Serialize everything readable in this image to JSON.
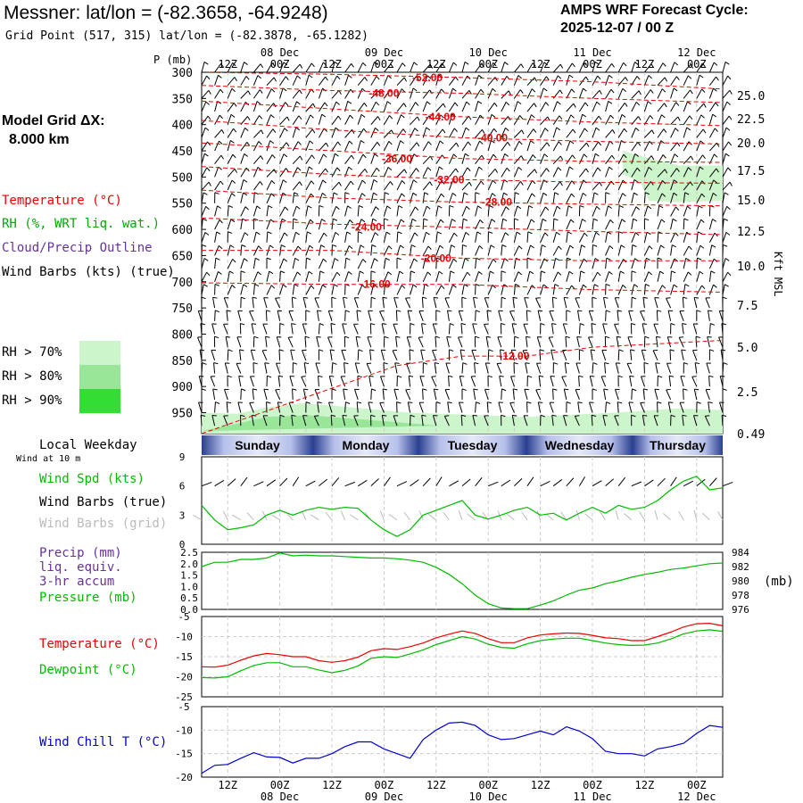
{
  "header": {
    "station_title": "Messner:  lat/lon = (-82.3658, -64.9248)",
    "grid_point": "Grid Point (517, 315) lat/lon = (-82.3878, -65.1282)",
    "cycle_title": "AMPS WRF Forecast Cycle:",
    "cycle_value": "2025-12-07 / 00  Z"
  },
  "sidebar": {
    "grid_label": "Model Grid ΔX:",
    "grid_value": "8.000 km",
    "legend_temp": "Temperature (°C)",
    "legend_rh": "RH (%, WRT liq. wat.)",
    "legend_cloud": "Cloud/Precip Outline",
    "legend_wind": "Wind Barbs (kts) (true)",
    "rh70": "RH > 70%",
    "rh80": "RH > 80%",
    "rh90": "RH > 90%",
    "local_weekday": "Local Weekday",
    "wind_10m": "Wind at 10 m",
    "wind_spd": "Wind Spd (kts)",
    "wind_barbs_true": "Wind Barbs (true)",
    "wind_barbs_grid": "Wind Barbs (grid)",
    "precip": "Precip (mm)",
    "liq_equiv": "liq. equiv.",
    "accum": "3-hr accum",
    "pressure": "Pressure (mb)",
    "temperature": "Temperature (°C)",
    "dewpoint": "Dewpoint (°C)",
    "wind_chill": "Wind Chill T (°C)"
  },
  "colors": {
    "rh70": "#ccf5cc",
    "rh80": "#99e699",
    "rh90": "#33dd33",
    "temp": "#ee0000",
    "green": "#00bb00",
    "blue": "#0000cc",
    "purple": "#663399",
    "grey": "#bbbbbb"
  },
  "axes": {
    "p_label": "P (mb)",
    "kft_label": "Kft MSL",
    "mb_label": "(mb)",
    "top_hours": [
      "12Z",
      "00Z",
      "12Z",
      "00Z",
      "12Z",
      "00Z",
      "12Z",
      "00Z",
      "12Z",
      "00Z"
    ],
    "top_dates": [
      {
        "hour": 1,
        "text": "08 Dec"
      },
      {
        "hour": 3,
        "text": "09 Dec"
      },
      {
        "hour": 5,
        "text": "10 Dec"
      },
      {
        "hour": 7,
        "text": "11 Dec"
      },
      {
        "hour": 9,
        "text": "12 Dec"
      }
    ],
    "days": [
      "Sunday",
      "Monday",
      "Tuesday",
      "Wednesday",
      "Thursday"
    ]
  },
  "chart_data": [
    {
      "type": "sounding-time-section",
      "x_unit": "forecast hour",
      "xlim": [
        0,
        120
      ],
      "pressure_levels": [
        300,
        350,
        400,
        450,
        500,
        550,
        600,
        650,
        700,
        750,
        800,
        850,
        900,
        950
      ],
      "height_kft": [
        25.0,
        22.5,
        20.0,
        17.5,
        15.0,
        12.5,
        10.0,
        7.5,
        5.0,
        2.5,
        0.49
      ],
      "temperature_contours": [
        {
          "label": "-52.00",
          "points": [
            [
              0,
              300
            ],
            [
              30,
              304
            ],
            [
              60,
              310
            ],
            [
              90,
              318
            ],
            [
              120,
              332
            ]
          ]
        },
        {
          "label": "-48.00",
          "points": [
            [
              0,
              325
            ],
            [
              30,
              335
            ],
            [
              60,
              340
            ],
            [
              90,
              350
            ],
            [
              120,
              358
            ]
          ]
        },
        {
          "label": "-44.00",
          "points": [
            [
              0,
              355
            ],
            [
              30,
              370
            ],
            [
              60,
              385
            ],
            [
              90,
              395
            ],
            [
              120,
              402
            ]
          ]
        },
        {
          "label": "-40.00",
          "points": [
            [
              0,
              392
            ],
            [
              30,
              410
            ],
            [
              60,
              425
            ],
            [
              90,
              432
            ],
            [
              120,
              437
            ]
          ]
        },
        {
          "label": "-36.00",
          "points": [
            [
              0,
              435
            ],
            [
              30,
              450
            ],
            [
              60,
              465
            ],
            [
              90,
              470
            ],
            [
              120,
              472
            ]
          ]
        },
        {
          "label": "-32.00",
          "points": [
            [
              0,
              480
            ],
            [
              30,
              495
            ],
            [
              60,
              505
            ],
            [
              90,
              510
            ],
            [
              120,
              512
            ]
          ]
        },
        {
          "label": "-28.00",
          "points": [
            [
              0,
              525
            ],
            [
              30,
              540
            ],
            [
              60,
              548
            ],
            [
              90,
              552
            ],
            [
              120,
              555
            ]
          ]
        },
        {
          "label": "-24.00",
          "points": [
            [
              0,
              578
            ],
            [
              30,
              590
            ],
            [
              60,
              596
            ],
            [
              90,
              604
            ],
            [
              120,
              610
            ]
          ]
        },
        {
          "label": "-20.00",
          "points": [
            [
              0,
              640
            ],
            [
              30,
              640
            ],
            [
              60,
              655
            ],
            [
              90,
              660
            ],
            [
              120,
              660
            ]
          ]
        },
        {
          "label": "-16.00",
          "points": [
            [
              0,
              702
            ],
            [
              30,
              705
            ],
            [
              60,
              705
            ],
            [
              90,
              715
            ],
            [
              120,
              720
            ]
          ]
        },
        {
          "label": "-12.00",
          "points": [
            [
              0,
              990
            ],
            [
              45,
              860
            ],
            [
              60,
              842
            ],
            [
              75,
              842
            ],
            [
              90,
              825
            ],
            [
              120,
              812
            ]
          ]
        }
      ],
      "rh70_regions": [
        {
          "name": "upper-cloud",
          "points": [
            [
              97,
              450
            ],
            [
              102,
              462
            ],
            [
              110,
              478
            ],
            [
              120,
              478
            ],
            [
              120,
              545
            ],
            [
              110,
              548
            ],
            [
              103,
              545
            ],
            [
              101,
              510
            ],
            [
              97,
              495
            ]
          ]
        },
        {
          "name": "low-cloud",
          "points": [
            [
              0,
              990
            ],
            [
              0,
              950
            ],
            [
              8,
              952
            ],
            [
              15,
              940
            ],
            [
              23,
              932
            ],
            [
              35,
              940
            ],
            [
              48,
              950
            ],
            [
              75,
              958
            ],
            [
              95,
              950
            ],
            [
              110,
              942
            ],
            [
              120,
              945
            ],
            [
              120,
              990
            ]
          ]
        }
      ],
      "wind_barbs": "shown at every level and time; directions/speeds not transcribed"
    },
    {
      "type": "line",
      "title": "Wind Spd (kts)",
      "x_unit": "forecast hour",
      "x": [
        0,
        3,
        6,
        9,
        12,
        15,
        18,
        21,
        24,
        27,
        30,
        33,
        36,
        39,
        42,
        45,
        48,
        51,
        54,
        57,
        60,
        63,
        66,
        69,
        72,
        75,
        78,
        81,
        84,
        87,
        90,
        93,
        96,
        99,
        102,
        105,
        108,
        111,
        114,
        117,
        120
      ],
      "wind_speed_kts": [
        4.0,
        2.5,
        1.5,
        1.7,
        2.0,
        3.0,
        3.5,
        3.0,
        3.5,
        3.8,
        3.6,
        3.8,
        3.7,
        2.5,
        1.5,
        0.8,
        1.5,
        3.0,
        3.5,
        4.0,
        4.5,
        3.0,
        2.6,
        3.0,
        3.5,
        3.8,
        3.0,
        3.2,
        2.5,
        3.2,
        3.8,
        3.2,
        4.0,
        3.6,
        3.8,
        4.5,
        5.6,
        6.5,
        7.0,
        5.6,
        5.8
      ],
      "ylim": [
        0,
        9
      ],
      "yticks": [
        0,
        3,
        6,
        9
      ],
      "wind_barbs": "true and grid barbs at each time step; not transcribed"
    },
    {
      "type": "line",
      "title": "Precip / Pressure",
      "x_unit": "forecast hour",
      "precip_ylim": [
        0.0,
        2.5
      ],
      "precip_ticks": [
        "0.0",
        "0.5",
        "1.0",
        "1.5",
        "2.0",
        "2.5"
      ],
      "precip_mm": [
        0,
        0,
        0,
        0,
        0,
        0,
        0,
        0,
        0,
        0,
        0,
        0,
        0,
        0,
        0,
        0,
        0,
        0,
        0,
        0,
        0,
        0,
        0,
        0,
        0,
        0,
        0,
        0,
        0,
        0,
        0,
        0,
        0,
        0,
        0,
        0,
        0,
        0,
        0,
        0,
        0
      ],
      "pressure_ylim": [
        976,
        984
      ],
      "pressure_ticks": [
        976,
        978,
        980,
        982,
        984
      ],
      "pressure_mb": [
        982.0,
        982.6,
        982.6,
        983.0,
        983.0,
        983.2,
        983.9,
        983.5,
        983.6,
        983.5,
        983.5,
        983.4,
        983.3,
        983.2,
        983.2,
        983.1,
        982.9,
        982.6,
        981.9,
        980.9,
        979.6,
        978.0,
        976.8,
        976.2,
        976.1,
        976.1,
        976.6,
        977.2,
        978.0,
        978.7,
        979.0,
        979.6,
        980.0,
        980.5,
        980.9,
        981.2,
        981.6,
        981.8,
        982.1,
        982.4,
        982.5
      ]
    },
    {
      "type": "line",
      "title": "Temperature / Dewpoint (°C)",
      "x_unit": "forecast hour",
      "ylim": [
        -25,
        -5
      ],
      "yticks": [
        -25,
        -20,
        -15,
        -10,
        -5
      ],
      "temperature_c": [
        -17.5,
        -17.6,
        -17.1,
        -15.9,
        -14.8,
        -14.2,
        -14.5,
        -15.0,
        -15.0,
        -16.0,
        -16.4,
        -16.0,
        -15.1,
        -13.5,
        -13.0,
        -13.2,
        -12.5,
        -11.6,
        -10.3,
        -9.4,
        -8.6,
        -9.2,
        -10.5,
        -11.5,
        -11.5,
        -10.3,
        -9.6,
        -9.3,
        -9.1,
        -9.2,
        -9.7,
        -10.3,
        -10.5,
        -11.0,
        -11.0,
        -10.0,
        -8.9,
        -7.6,
        -6.8,
        -6.7,
        -7.3
      ],
      "dewpoint_c": [
        -20.2,
        -20.3,
        -20.0,
        -18.5,
        -17.2,
        -16.5,
        -16.5,
        -17.5,
        -17.5,
        -18.3,
        -19.0,
        -18.4,
        -17.3,
        -15.4,
        -15.0,
        -15.2,
        -14.3,
        -13.3,
        -12.0,
        -11.0,
        -10.0,
        -10.6,
        -11.9,
        -12.7,
        -12.9,
        -11.8,
        -11.0,
        -10.6,
        -10.4,
        -10.4,
        -11.0,
        -11.6,
        -12.0,
        -12.2,
        -12.1,
        -11.6,
        -10.6,
        -9.3,
        -8.6,
        -8.3,
        -8.7
      ]
    },
    {
      "type": "line",
      "title": "Wind Chill T (°C)",
      "x_unit": "forecast hour",
      "ylim": [
        -20,
        -5
      ],
      "yticks": [
        -20,
        -15,
        -10,
        -5
      ],
      "wind_chill_c": [
        -19.2,
        -17.5,
        -17.3,
        -16.0,
        -14.8,
        -15.7,
        -15.8,
        -17.0,
        -16.0,
        -16.0,
        -15.0,
        -13.5,
        -12.5,
        -12.5,
        -14.0,
        -15.0,
        -16.0,
        -12.0,
        -10.0,
        -8.5,
        -8.3,
        -9.0,
        -11.0,
        -12.0,
        -11.8,
        -11.0,
        -10.2,
        -11.0,
        -9.3,
        -10.2,
        -11.8,
        -14.5,
        -15.0,
        -15.0,
        -15.5,
        -14.0,
        -13.5,
        -12.8,
        -10.7,
        -9.0,
        -9.4
      ]
    }
  ]
}
